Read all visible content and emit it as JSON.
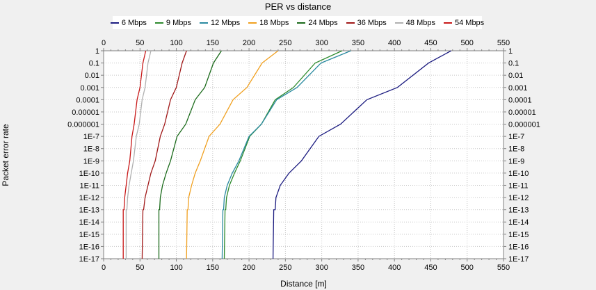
{
  "chart_data": {
    "type": "line",
    "title": "PER vs distance",
    "xlabel": "Distance [m]",
    "ylabel": "Packet error rate",
    "xlim": [
      0,
      550
    ],
    "ylog": true,
    "ylim": [
      1e-17,
      1
    ],
    "x_ticks": [
      "0",
      "50",
      "100",
      "150",
      "200",
      "250",
      "300",
      "350",
      "400",
      "450",
      "500",
      "550"
    ],
    "y_ticks": [
      "1",
      "0.1",
      "0.01",
      "0.001",
      "0.0001",
      "0.00001",
      "0.000001",
      "1E-7",
      "1E-8",
      "1E-9",
      "1E-10",
      "1E-11",
      "1E-12",
      "1E-13",
      "1E-14",
      "1E-15",
      "1E-16",
      "1E-17"
    ],
    "grid": true,
    "legend_position": "top",
    "series": [
      {
        "name": "6 Mbps",
        "color": "#1c1c80",
        "x": [
          233,
          234,
          236,
          237,
          243,
          255,
          272,
          296,
          326,
          362,
          404,
          447,
          478
        ],
        "y": [
          1e-17,
          1e-13,
          1e-13,
          1e-12,
          1e-11,
          1e-10,
          1e-09,
          1e-07,
          1e-06,
          0.0001,
          0.001,
          0.1,
          1
        ]
      },
      {
        "name": "9 Mbps",
        "color": "#2d8a2d",
        "x": [
          166,
          167,
          168,
          169,
          173,
          180,
          188,
          201,
          217,
          236,
          261,
          291,
          328
        ],
        "y": [
          1e-17,
          1e-13,
          1e-13,
          1e-12,
          1e-11,
          1e-10,
          1e-09,
          1e-07,
          1e-06,
          0.0001,
          0.001,
          0.1,
          1
        ]
      },
      {
        "name": "12 Mbps",
        "color": "#2a8aa0",
        "x": [
          163,
          164,
          165,
          166,
          170,
          177,
          186,
          200,
          217,
          238,
          266,
          299,
          340
        ],
        "y": [
          1e-17,
          1e-13,
          1e-13,
          1e-12,
          1e-11,
          1e-10,
          1e-09,
          1e-07,
          1e-06,
          0.0001,
          0.001,
          0.1,
          1
        ]
      },
      {
        "name": "18 Mbps",
        "color": "#f0a020",
        "x": [
          114,
          115,
          116,
          117,
          121,
          126,
          133,
          145,
          160,
          178,
          197,
          218,
          240
        ],
        "y": [
          1e-17,
          1e-13,
          1e-13,
          1e-12,
          1e-11,
          1e-10,
          1e-09,
          1e-07,
          1e-06,
          0.0001,
          0.001,
          0.1,
          1
        ]
      },
      {
        "name": "24 Mbps",
        "color": "#1a6a1a",
        "x": [
          76,
          76,
          77,
          78,
          81,
          86,
          92,
          101,
          113,
          126,
          139,
          151,
          162
        ],
        "y": [
          1e-17,
          1e-13,
          1e-13,
          1e-12,
          1e-11,
          1e-10,
          1e-09,
          1e-07,
          1e-06,
          0.0001,
          0.001,
          0.1,
          1
        ]
      },
      {
        "name": "36 Mbps",
        "color": "#a01818",
        "x": [
          53,
          54,
          55,
          57,
          61,
          65,
          71,
          78,
          84,
          92,
          100,
          108,
          114
        ],
        "y": [
          1e-17,
          1e-13,
          1e-13,
          1e-12,
          1e-11,
          1e-10,
          1e-09,
          1e-07,
          1e-06,
          0.0001,
          0.001,
          0.1,
          1
        ]
      },
      {
        "name": "48 Mbps",
        "color": "#b0b0b0",
        "x": [
          31,
          31,
          32,
          33,
          35,
          38,
          41,
          45,
          49,
          53,
          57,
          61,
          65
        ],
        "y": [
          1e-17,
          1e-13,
          1e-13,
          1e-12,
          1e-11,
          1e-10,
          1e-09,
          1e-07,
          1e-06,
          0.0001,
          0.001,
          0.1,
          1
        ]
      },
      {
        "name": "54 Mbps",
        "color": "#c81818",
        "x": [
          27,
          27,
          28,
          29,
          31,
          33,
          36,
          39,
          42,
          46,
          50,
          54,
          58
        ],
        "y": [
          1e-17,
          1e-13,
          1e-13,
          1e-12,
          1e-11,
          1e-10,
          1e-09,
          1e-07,
          1e-06,
          0.0001,
          0.001,
          0.1,
          1
        ]
      }
    ]
  }
}
